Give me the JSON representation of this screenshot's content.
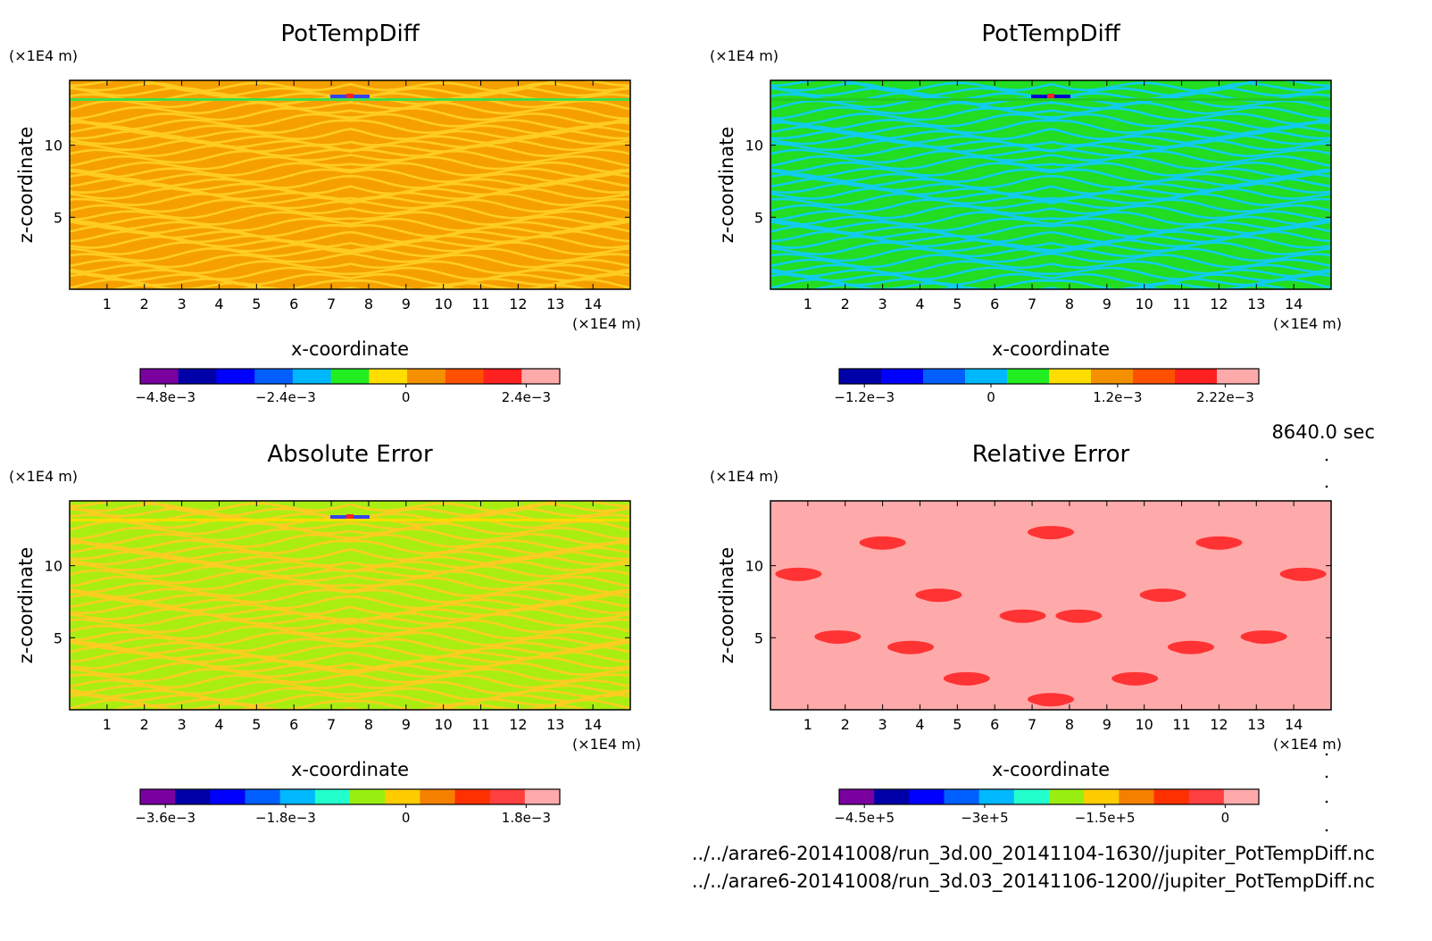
{
  "footer": {
    "time": "8640.0 sec",
    "file1": "../../arare6-20141008/run_3d.00_20141104-1630//jupiter_PotTempDiff.nc",
    "file2": "../../arare6-20141008/run_3d.03_20141106-1200//jupiter_PotTempDiff.nc"
  },
  "chart_data": [
    {
      "type": "heatmap",
      "title": "PotTempDiff",
      "xlabel": "x-coordinate",
      "ylabel": "z-coordinate",
      "x_unit": "(×1E4 m)",
      "y_unit": "(×1E4 m)",
      "xlim": [
        0,
        15
      ],
      "ylim": [
        0,
        14.5
      ],
      "x_ticks": [
        "1",
        "2",
        "3",
        "4",
        "5",
        "6",
        "7",
        "8",
        "9",
        "10",
        "11",
        "12",
        "13",
        "14"
      ],
      "y_ticks": [
        "5",
        "10"
      ],
      "dominant_colors": [
        "#f5a000",
        "#ffcc22"
      ],
      "colorbar": {
        "colors": [
          "#7a00a0",
          "#0000a8",
          "#0000ff",
          "#0060ff",
          "#00b8ff",
          "#22ee22",
          "#ffdd00",
          "#f59000",
          "#ff5000",
          "#ff2020",
          "#ffaaaa"
        ],
        "ticks": [
          {
            "label": "−4.8e−3",
            "value": -0.0048
          },
          {
            "label": "−2.4e−3",
            "value": -0.0024
          },
          {
            "label": "0",
            "value": 0
          },
          {
            "label": "2.4e−3",
            "value": 0.0024
          }
        ]
      }
    },
    {
      "type": "heatmap",
      "title": "PotTempDiff",
      "xlabel": "x-coordinate",
      "ylabel": "z-coordinate",
      "x_unit": "(×1E4 m)",
      "y_unit": "(×1E4 m)",
      "xlim": [
        0,
        15
      ],
      "ylim": [
        0,
        14.5
      ],
      "x_ticks": [
        "1",
        "2",
        "3",
        "4",
        "5",
        "6",
        "7",
        "8",
        "9",
        "10",
        "11",
        "12",
        "13",
        "14"
      ],
      "y_ticks": [
        "5",
        "10"
      ],
      "dominant_colors": [
        "#22dd22",
        "#11ccee"
      ],
      "colorbar": {
        "colors": [
          "#0000a8",
          "#0000ff",
          "#0060ff",
          "#00b8ff",
          "#22ee22",
          "#ffdd00",
          "#f59000",
          "#ff5000",
          "#ff2020",
          "#ffaaaa"
        ],
        "ticks": [
          {
            "label": "−1.2e−3",
            "value": -0.0012
          },
          {
            "label": "0",
            "value": 0
          },
          {
            "label": "1.2e−3",
            "value": 0.0012
          },
          {
            "label": "2.22e−3",
            "value": 0.00222
          }
        ]
      }
    },
    {
      "type": "heatmap",
      "title": "Absolute Error",
      "xlabel": "x-coordinate",
      "ylabel": "z-coordinate",
      "x_unit": "(×1E4 m)",
      "y_unit": "(×1E4 m)",
      "xlim": [
        0,
        15
      ],
      "ylim": [
        0,
        14.5
      ],
      "x_ticks": [
        "1",
        "2",
        "3",
        "4",
        "5",
        "6",
        "7",
        "8",
        "9",
        "10",
        "11",
        "12",
        "13",
        "14"
      ],
      "y_ticks": [
        "5",
        "10"
      ],
      "dominant_colors": [
        "#aaee11",
        "#ffcc22"
      ],
      "colorbar": {
        "colors": [
          "#7a00a0",
          "#0000a8",
          "#0000ff",
          "#0060ff",
          "#00b8ff",
          "#22ffcc",
          "#99ee11",
          "#ffcc00",
          "#f58000",
          "#ff3000",
          "#ff4040",
          "#ffaaaa"
        ],
        "ticks": [
          {
            "label": "−3.6e−3",
            "value": -0.0036
          },
          {
            "label": "−1.8e−3",
            "value": -0.0018
          },
          {
            "label": "0",
            "value": 0
          },
          {
            "label": "1.8e−3",
            "value": 0.0018
          }
        ]
      }
    },
    {
      "type": "heatmap",
      "title": "Relative Error",
      "xlabel": "x-coordinate",
      "ylabel": "z-coordinate",
      "x_unit": "(×1E4 m)",
      "y_unit": "(×1E4 m)",
      "xlim": [
        0,
        15
      ],
      "ylim": [
        0,
        14.5
      ],
      "x_ticks": [
        "1",
        "2",
        "3",
        "4",
        "5",
        "6",
        "7",
        "8",
        "9",
        "10",
        "11",
        "12",
        "13",
        "14"
      ],
      "y_ticks": [
        "5",
        "10"
      ],
      "dominant_colors": [
        "#ffaaaa",
        "#ff3333"
      ],
      "colorbar": {
        "colors": [
          "#7a00a0",
          "#0000a8",
          "#0000ff",
          "#0060ff",
          "#00b8ff",
          "#22ffcc",
          "#99ee11",
          "#ffcc00",
          "#f58000",
          "#ff3000",
          "#ff4040",
          "#ffaaaa"
        ],
        "ticks": [
          {
            "label": "−4.5e+5",
            "value": -450000
          },
          {
            "label": "−3e+5",
            "value": -300000
          },
          {
            "label": "−1.5e+5",
            "value": -150000
          },
          {
            "label": "0",
            "value": 0
          }
        ]
      }
    }
  ]
}
